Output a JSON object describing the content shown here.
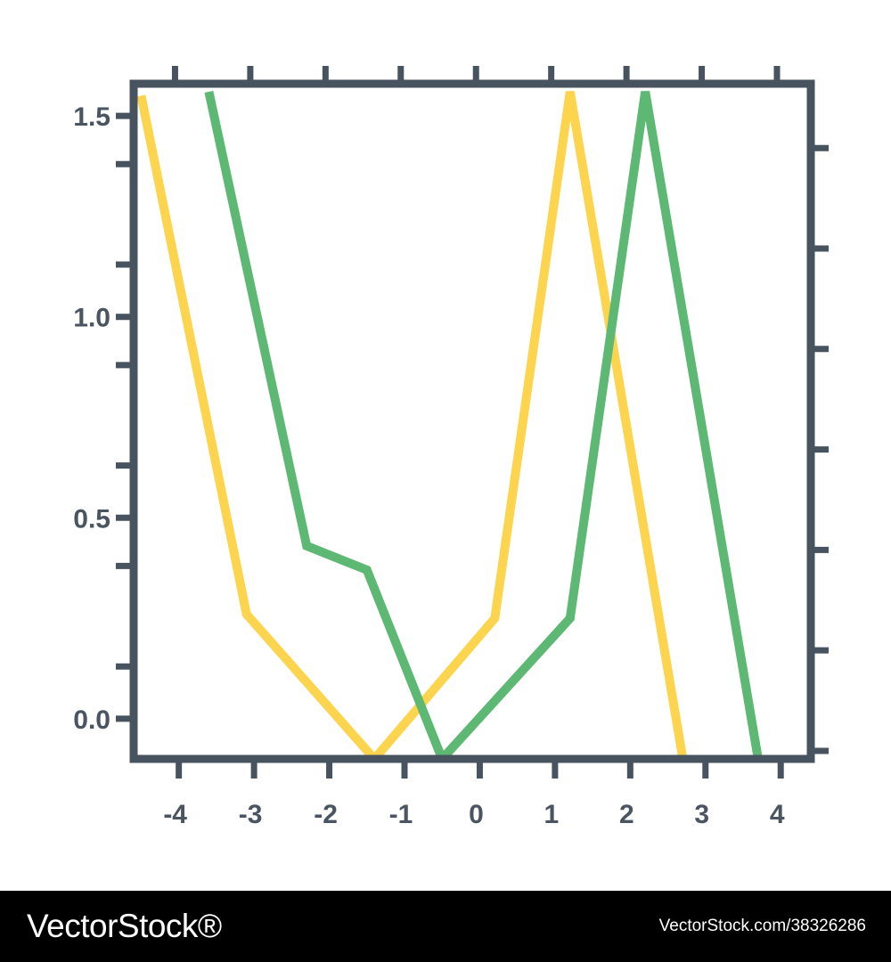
{
  "chart_data": {
    "type": "line",
    "title": "",
    "xlabel": "",
    "ylabel": "",
    "xlim": [
      -4.6,
      4.4
    ],
    "ylim": [
      -0.1,
      1.58
    ],
    "x_ticks": [
      -4,
      -3,
      -2,
      -1,
      0,
      1,
      2,
      3,
      4
    ],
    "x_tick_labels": [
      "-4",
      "-3",
      "-2",
      "-1",
      "0",
      "1",
      "2",
      "3",
      "4"
    ],
    "y_ticks": [
      0.0,
      0.5,
      1.0,
      1.5
    ],
    "y_tick_labels": [
      "0.0",
      "0.5",
      "1.0",
      "1.5"
    ],
    "grid": false,
    "series": [
      {
        "color": "#fdd44e",
        "x": [
          -4.5,
          -3.1,
          -1.4,
          0.2,
          1.2,
          2.7
        ],
        "y": [
          1.55,
          0.26,
          -0.1,
          0.25,
          1.56,
          -0.1
        ]
      },
      {
        "color": "#5cb872",
        "x": [
          -3.6,
          -2.3,
          -1.5,
          -0.5,
          1.2,
          2.2,
          3.7
        ],
        "y": [
          1.56,
          0.43,
          0.37,
          -0.1,
          0.25,
          1.56,
          -0.1
        ]
      }
    ],
    "frame_color": "#47535f"
  },
  "footer": {
    "logo_text": "VectorStock®",
    "credit": "VectorStock.com/38326286"
  }
}
